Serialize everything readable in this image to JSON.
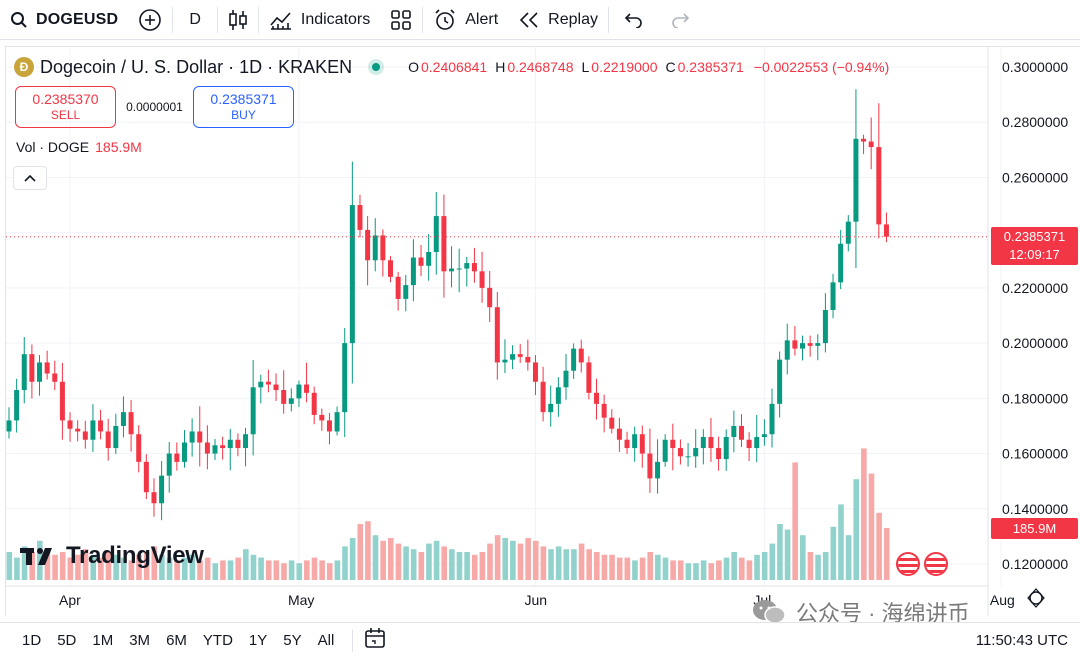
{
  "toolbar": {
    "symbol": "DOGEUSD",
    "interval": "D",
    "indicators_label": "Indicators",
    "alert_label": "Alert",
    "replay_label": "Replay"
  },
  "legend": {
    "title": "Dogecoin / U. S. Dollar · 1D · KRAKEN",
    "coin_glyph": "Ð",
    "open_key": "O",
    "open": "0.2406841",
    "high_key": "H",
    "high": "0.2468748",
    "low_key": "L",
    "low": "0.2219000",
    "close_key": "C",
    "close": "0.2385371",
    "change": "−0.0022553 (−0.94%)"
  },
  "trade": {
    "sell_price": "0.2385370",
    "sell_label": "SELL",
    "spread": "0.0000001",
    "buy_price": "0.2385371",
    "buy_label": "BUY"
  },
  "volume_legend": {
    "label": "Vol · DOGE",
    "value": "185.9M"
  },
  "tags": {
    "last_price": "0.2385371",
    "countdown": "12:09:17",
    "last_volume": "185.9M"
  },
  "brand": {
    "logo_text": "TradingView"
  },
  "bottom": {
    "ranges": [
      "1D",
      "5D",
      "1M",
      "3M",
      "6M",
      "YTD",
      "1Y",
      "5Y",
      "All"
    ],
    "clock": "11:50:43 UTC"
  },
  "watermark": {
    "text": "公众号 · 海绵讲币"
  },
  "colors": {
    "up": "#089981",
    "down": "#f23645",
    "vol_up": "#92d2cc",
    "vol_down": "#f7a9a7",
    "buy": "#2962ff"
  },
  "chart_data": {
    "type": "candlestick",
    "y_ticks": [
      "0.3000000",
      "0.2800000",
      "0.2600000",
      "0.2400000",
      "0.2200000",
      "0.2000000",
      "0.1800000",
      "0.1600000",
      "0.1400000",
      "0.1200000"
    ],
    "y_range": [
      0.12,
      0.3
    ],
    "x_labels": [
      "Apr",
      "May",
      "Jun",
      "Jul",
      "Aug"
    ],
    "last_price": 0.2385371,
    "approx_daily_closes": [
      0.172,
      0.183,
      0.196,
      0.186,
      0.193,
      0.189,
      0.186,
      0.172,
      0.169,
      0.168,
      0.165,
      0.172,
      0.168,
      0.162,
      0.17,
      0.175,
      0.167,
      0.157,
      0.146,
      0.142,
      0.152,
      0.16,
      0.157,
      0.164,
      0.168,
      0.164,
      0.16,
      0.163,
      0.162,
      0.165,
      0.162,
      0.167,
      0.184,
      0.186,
      0.185,
      0.183,
      0.178,
      0.18,
      0.185,
      0.182,
      0.174,
      0.172,
      0.168,
      0.175,
      0.2,
      0.25,
      0.241,
      0.23,
      0.239,
      0.23,
      0.224,
      0.216,
      0.221,
      0.231,
      0.228,
      0.233,
      0.246,
      0.226,
      0.227,
      0.227,
      0.229,
      0.226,
      0.22,
      0.213,
      0.193,
      0.194,
      0.196,
      0.195,
      0.193,
      0.186,
      0.175,
      0.178,
      0.184,
      0.19,
      0.198,
      0.193,
      0.182,
      0.178,
      0.173,
      0.169,
      0.165,
      0.162,
      0.167,
      0.16,
      0.151,
      0.157,
      0.165,
      0.162,
      0.159,
      0.159,
      0.162,
      0.166,
      0.162,
      0.158,
      0.166,
      0.17,
      0.165,
      0.162,
      0.166,
      0.167,
      0.178,
      0.194,
      0.201,
      0.198,
      0.2,
      0.199,
      0.2,
      0.212,
      0.222,
      0.236,
      0.244,
      0.274,
      0.273,
      0.271,
      0.243,
      0.2385371
    ],
    "approx_daily_volumes": [
      1.0,
      0.8,
      1.2,
      1.0,
      1.4,
      1.1,
      0.9,
      1.0,
      0.8,
      0.9,
      1.1,
      0.9,
      0.8,
      1.0,
      0.9,
      0.8,
      0.7,
      0.9,
      1.0,
      1.2,
      0.9,
      0.8,
      0.7,
      0.8,
      0.9,
      0.7,
      0.8,
      0.6,
      0.7,
      0.7,
      0.8,
      1.1,
      0.9,
      0.8,
      0.7,
      0.7,
      0.6,
      0.7,
      0.6,
      0.7,
      0.8,
      0.7,
      0.6,
      0.7,
      1.2,
      1.5,
      2.0,
      2.1,
      1.6,
      1.4,
      1.5,
      1.3,
      1.2,
      1.1,
      1.0,
      1.3,
      1.4,
      1.2,
      1.1,
      1.0,
      1.0,
      0.9,
      1.0,
      1.3,
      1.6,
      1.5,
      1.4,
      1.3,
      1.5,
      1.4,
      1.2,
      1.1,
      1.2,
      1.1,
      1.1,
      1.3,
      1.1,
      1.0,
      0.9,
      0.9,
      0.8,
      0.8,
      0.7,
      0.8,
      1.0,
      0.9,
      0.8,
      0.7,
      0.7,
      0.6,
      0.6,
      0.7,
      0.6,
      0.7,
      0.8,
      1.0,
      0.8,
      0.7,
      0.9,
      1.0,
      1.3,
      2.0,
      1.8,
      4.2,
      1.6,
      1.0,
      0.9,
      1.0,
      1.9,
      2.7,
      1.6,
      3.6,
      4.7,
      3.8,
      2.4,
      1.859
    ]
  }
}
